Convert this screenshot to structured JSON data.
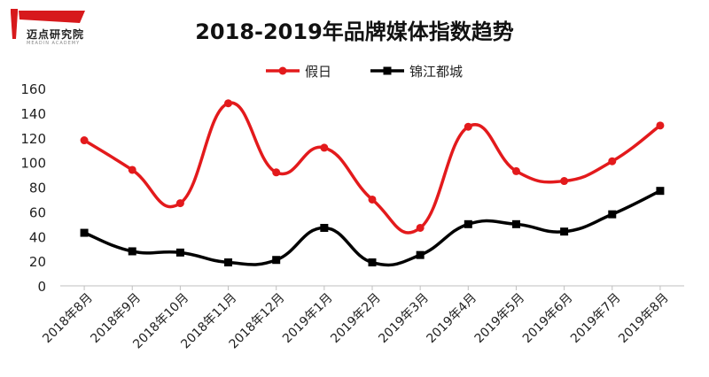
{
  "logo": {
    "name": "迈点研究院",
    "sub": "MEADIN ACADEMY"
  },
  "chart_data": {
    "type": "line",
    "title": "2018-2019年品牌媒体指数趋势",
    "categories": [
      "2018年8月",
      "2018年9月",
      "2018年10月",
      "2018年11月",
      "2018年12月",
      "2019年1月",
      "2019年2月",
      "2019年3月",
      "2019年4月",
      "2019年5月",
      "2019年6月",
      "2019年7月",
      "2019年8月"
    ],
    "series": [
      {
        "name": "假日",
        "color": "#e31a1c",
        "marker": "circle",
        "values": [
          118,
          94,
          67,
          148,
          92,
          112,
          70,
          47,
          129,
          93,
          85,
          101,
          130
        ]
      },
      {
        "name": "锦江都城",
        "color": "#000000",
        "marker": "square",
        "values": [
          43,
          28,
          27,
          19,
          21,
          47,
          19,
          25,
          50,
          50,
          44,
          58,
          77
        ]
      }
    ],
    "ylim": [
      0,
      160
    ],
    "yticks": [
      0,
      20,
      40,
      60,
      80,
      100,
      120,
      140,
      160
    ],
    "legend": "top-center",
    "grid": false
  }
}
